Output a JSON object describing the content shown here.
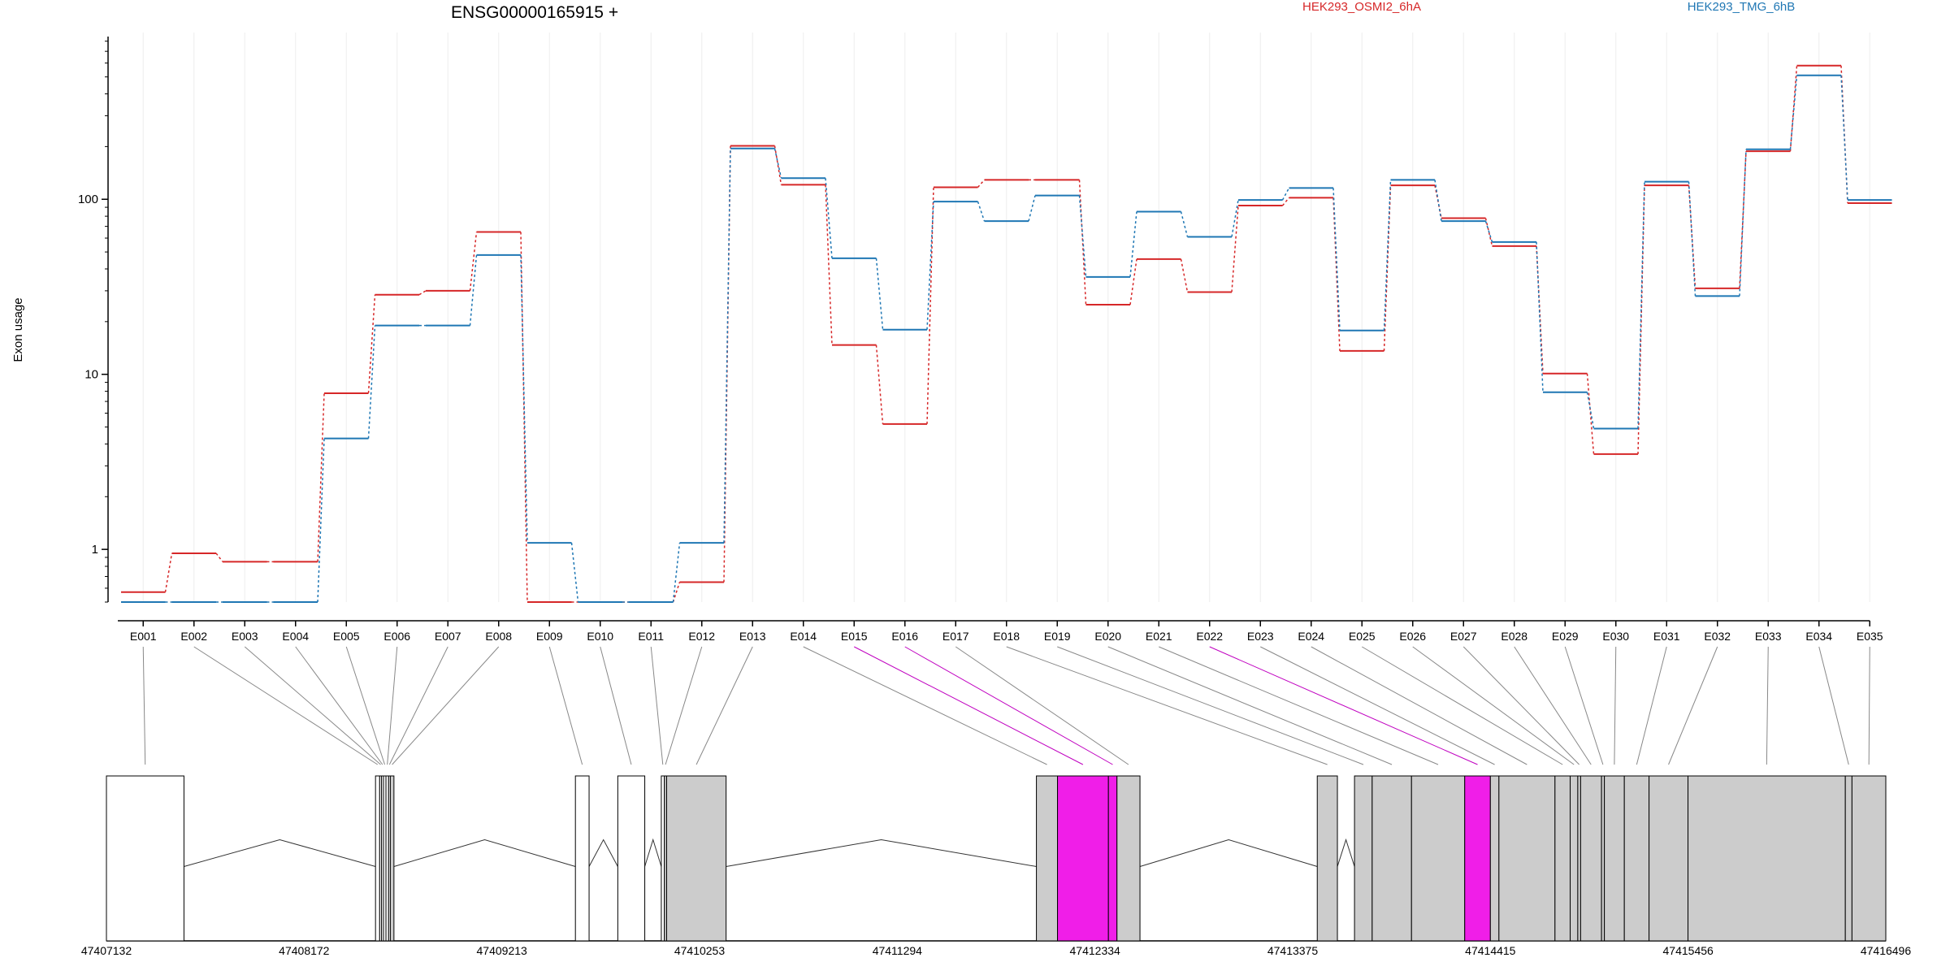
{
  "chart_data": {
    "type": "line",
    "title": "ENSG00000165915 +",
    "ylabel": "Exon usage",
    "y_scale": "log10",
    "ylim": [
      0.5,
      850
    ],
    "y_ticks": [
      {
        "value": 1,
        "label": "1"
      },
      {
        "value": 10,
        "label": "10"
      },
      {
        "value": 100,
        "label": "100"
      }
    ],
    "grid": "vertical",
    "legend_position": "top",
    "categories": [
      "E001",
      "E002",
      "E003",
      "E004",
      "E005",
      "E006",
      "E007",
      "E008",
      "E009",
      "E010",
      "E011",
      "E012",
      "E013",
      "E014",
      "E015",
      "E016",
      "E017",
      "E018",
      "E019",
      "E020",
      "E021",
      "E022",
      "E023",
      "E024",
      "E025",
      "E026",
      "E027",
      "E028",
      "E029",
      "E030",
      "E031",
      "E032",
      "E033",
      "E034",
      "E035"
    ],
    "series": [
      {
        "name": "HEK293_OSMI2_6hA",
        "color": "#d62728",
        "values": [
          0.57,
          0.95,
          0.85,
          0.85,
          7.8,
          28.5,
          30,
          65,
          0.5,
          0.5,
          0.5,
          0.65,
          202,
          121,
          14.7,
          5.2,
          117,
          129,
          129,
          25,
          45.5,
          29.5,
          92,
          102,
          13.6,
          120,
          78,
          54,
          10.1,
          3.5,
          120,
          31,
          188,
          580,
          95
        ]
      },
      {
        "name": "HEK293_TMG_6hB",
        "color": "#1f77b4",
        "values": [
          0.5,
          0.5,
          0.5,
          0.5,
          4.3,
          19,
          19,
          48,
          1.09,
          0.5,
          0.5,
          1.09,
          195,
          132,
          46,
          18,
          97,
          75,
          105,
          36,
          85,
          61,
          99,
          116,
          17.8,
          129,
          75,
          57,
          7.9,
          4.9,
          126,
          28,
          193,
          510,
          99
        ]
      }
    ],
    "gene_model": {
      "coordinate_ticks": [
        "47407132",
        "47408172",
        "47409213",
        "47410253",
        "47411294",
        "47412334",
        "47413375",
        "47414415",
        "47415456",
        "47416496"
      ],
      "range": [
        47407132,
        47416496
      ],
      "exons": [
        {
          "id": "E001",
          "start": 47407132,
          "end": 47407540,
          "fill": "#ffffff"
        },
        {
          "id": "E002",
          "start": 47408548,
          "end": 47408570,
          "fill": "#ffffff"
        },
        {
          "id": "E003",
          "start": 47408570,
          "end": 47408580,
          "fill": "#ffffff"
        },
        {
          "id": "E004",
          "start": 47408580,
          "end": 47408590,
          "fill": "#ffffff"
        },
        {
          "id": "E005",
          "start": 47408590,
          "end": 47408603,
          "fill": "#ffffff"
        },
        {
          "id": "E006",
          "start": 47408603,
          "end": 47408617,
          "fill": "#ffffff"
        },
        {
          "id": "E007",
          "start": 47408617,
          "end": 47408626,
          "fill": "#ffffff"
        },
        {
          "id": "E008",
          "start": 47408626,
          "end": 47408645,
          "fill": "#cccccc"
        },
        {
          "id": "E009",
          "start": 47409600,
          "end": 47409672,
          "fill": "#ffffff"
        },
        {
          "id": "E010",
          "start": 47409823,
          "end": 47409965,
          "fill": "#ffffff"
        },
        {
          "id": "E011",
          "start": 47410052,
          "end": 47410068,
          "fill": "#ffffff"
        },
        {
          "id": "E012",
          "start": 47410068,
          "end": 47410080,
          "fill": "#cccccc"
        },
        {
          "id": "E013",
          "start": 47410080,
          "end": 47410393,
          "fill": "#cccccc"
        },
        {
          "id": "E014",
          "start": 47412026,
          "end": 47412137,
          "fill": "#cccccc"
        },
        {
          "id": "E015",
          "start": 47412137,
          "end": 47412405,
          "fill": "#f01ee8"
        },
        {
          "id": "E016",
          "start": 47412405,
          "end": 47412450,
          "fill": "#f01ee8"
        },
        {
          "id": "E017",
          "start": 47412450,
          "end": 47412571,
          "fill": "#cccccc"
        },
        {
          "id": "E018",
          "start": 47413504,
          "end": 47413610,
          "fill": "#cccccc"
        },
        {
          "id": "E019",
          "start": 47413700,
          "end": 47413793,
          "fill": "#cccccc"
        },
        {
          "id": "E020",
          "start": 47413793,
          "end": 47414000,
          "fill": "#cccccc"
        },
        {
          "id": "E021",
          "start": 47414000,
          "end": 47414280,
          "fill": "#cccccc"
        },
        {
          "id": "E022",
          "start": 47414280,
          "end": 47414415,
          "fill": "#f01ee8"
        },
        {
          "id": "E023",
          "start": 47414415,
          "end": 47414460,
          "fill": "#cccccc"
        },
        {
          "id": "E024",
          "start": 47414460,
          "end": 47414755,
          "fill": "#cccccc"
        },
        {
          "id": "E025",
          "start": 47414755,
          "end": 47414835,
          "fill": "#cccccc"
        },
        {
          "id": "E026",
          "start": 47414835,
          "end": 47414875,
          "fill": "#cccccc"
        },
        {
          "id": "E027",
          "start": 47414875,
          "end": 47414890,
          "fill": "#cccccc"
        },
        {
          "id": "E028",
          "start": 47414890,
          "end": 47415000,
          "fill": "#cccccc"
        },
        {
          "id": "E029",
          "start": 47415000,
          "end": 47415015,
          "fill": "#cccccc"
        },
        {
          "id": "E030",
          "start": 47415015,
          "end": 47415120,
          "fill": "#cccccc"
        },
        {
          "id": "E031",
          "start": 47415120,
          "end": 47415250,
          "fill": "#cccccc"
        },
        {
          "id": "E032",
          "start": 47415250,
          "end": 47415455,
          "fill": "#cccccc"
        },
        {
          "id": "E033",
          "start": 47415455,
          "end": 47416283,
          "fill": "#cccccc"
        },
        {
          "id": "E034",
          "start": 47416283,
          "end": 47416318,
          "fill": "#cccccc"
        },
        {
          "id": "E035",
          "start": 47416318,
          "end": 47416496,
          "fill": "#cccccc"
        }
      ],
      "highlight_exons": [
        "E015",
        "E016",
        "E022"
      ],
      "highlight_color": "#c000c0"
    }
  }
}
